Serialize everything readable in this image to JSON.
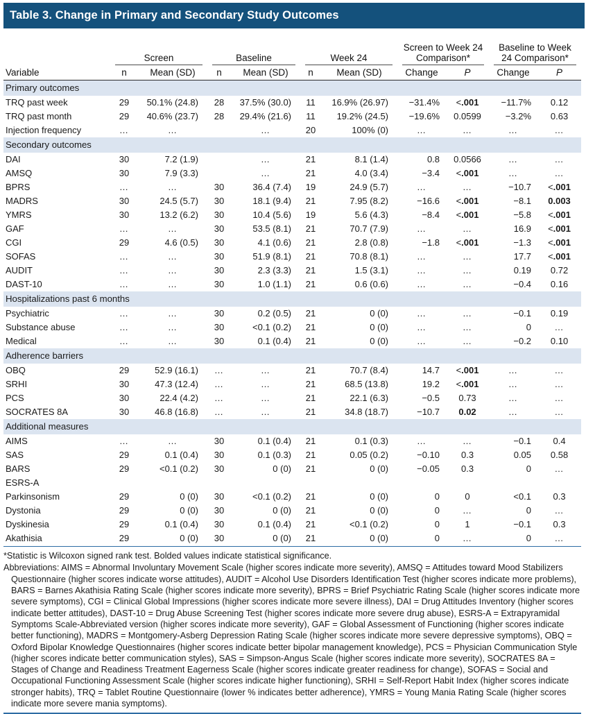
{
  "title": "Table 3. Change in Primary and Secondary Study Outcomes",
  "header": {
    "variable_label": "Variable",
    "groups": [
      {
        "label": "Screen"
      },
      {
        "label": "Baseline"
      },
      {
        "label": "Week 24"
      },
      {
        "label": "Screen to Week 24 Comparison*"
      },
      {
        "label": "Baseline to Week 24 Comparison*"
      }
    ],
    "sub": {
      "n": "n",
      "mean": "Mean (SD)",
      "change": "Change",
      "p": "P"
    }
  },
  "sections": [
    {
      "header": "Primary outcomes",
      "rows": [
        {
          "label": "TRQ past week",
          "cells": [
            "29",
            "50.1% (24.8)",
            "28",
            "37.5% (30.0)",
            "11",
            "16.9% (26.97)",
            "−31.4%",
            "<.001",
            "−11.7%",
            "0.12"
          ],
          "bold": [
            7
          ]
        },
        {
          "label": "TRQ past month",
          "cells": [
            "29",
            "40.6% (23.7)",
            "28",
            "29.4% (21.6)",
            "11",
            "19.2% (24.5)",
            "−19.6%",
            "0.0599",
            "−3.2%",
            "0.63"
          ],
          "bold": []
        },
        {
          "label": "Injection frequency",
          "cells": [
            "…",
            "…",
            "",
            "…",
            "20",
            "100% (0)",
            "…",
            "…",
            "…",
            "…"
          ],
          "bold": []
        }
      ]
    },
    {
      "header": "Secondary outcomes",
      "rows": [
        {
          "label": "DAI",
          "cells": [
            "30",
            "7.2 (1.9)",
            "",
            "…",
            "21",
            "8.1 (1.4)",
            "0.8",
            "0.0566",
            "…",
            "…"
          ],
          "bold": []
        },
        {
          "label": "AMSQ",
          "cells": [
            "30",
            "7.9 (3.3)",
            "",
            "…",
            "21",
            "4.0 (3.4)",
            "−3.4",
            "<.001",
            "…",
            "…"
          ],
          "bold": [
            7
          ]
        },
        {
          "label": "BPRS",
          "cells": [
            "…",
            "…",
            "30",
            "36.4 (7.4)",
            "19",
            "24.9 (5.7)",
            "…",
            "…",
            "−10.7",
            "<.001"
          ],
          "bold": [
            9
          ]
        },
        {
          "label": "MADRS",
          "cells": [
            "30",
            "24.5 (5.7)",
            "30",
            "18.1 (9.4)",
            "21",
            "7.95 (8.2)",
            "−16.6",
            "<.001",
            "−8.1",
            "0.003"
          ],
          "bold": [
            7,
            9
          ]
        },
        {
          "label": "YMRS",
          "cells": [
            "30",
            "13.2 (6.2)",
            "30",
            "10.4 (5.6)",
            "19",
            "5.6 (4.3)",
            "−8.4",
            "<.001",
            "−5.8",
            "<.001"
          ],
          "bold": [
            7,
            9
          ]
        },
        {
          "label": "GAF",
          "cells": [
            "…",
            "…",
            "30",
            "53.5 (8.1)",
            "21",
            "70.7 (7.9)",
            "…",
            "…",
            "16.9",
            "<.001"
          ],
          "bold": [
            9
          ]
        },
        {
          "label": "CGI",
          "cells": [
            "29",
            "4.6 (0.5)",
            "30",
            "4.1 (0.6)",
            "21",
            "2.8 (0.8)",
            "−1.8",
            "<.001",
            "−1.3",
            "<.001"
          ],
          "bold": [
            7,
            9
          ]
        },
        {
          "label": "SOFAS",
          "cells": [
            "…",
            "…",
            "30",
            "51.9 (8.1)",
            "21",
            "70.8 (8.1)",
            "…",
            "…",
            "17.7",
            "<.001"
          ],
          "bold": [
            9
          ]
        },
        {
          "label": "AUDIT",
          "cells": [
            "…",
            "…",
            "30",
            "2.3 (3.3)",
            "21",
            "1.5 (3.1)",
            "…",
            "…",
            "0.19",
            "0.72"
          ],
          "bold": []
        },
        {
          "label": "DAST-10",
          "cells": [
            "…",
            "…",
            "30",
            "1.0 (1.1)",
            "21",
            "0.6 (0.6)",
            "…",
            "…",
            "−0.4",
            "0.16"
          ],
          "bold": []
        }
      ]
    },
    {
      "header": "Hospitalizations past 6 months",
      "rows": [
        {
          "label": "Psychiatric",
          "cells": [
            "…",
            "…",
            "30",
            "0.2 (0.5)",
            "21",
            "0 (0)",
            "…",
            "…",
            "−0.1",
            "0.19"
          ],
          "bold": []
        },
        {
          "label": "Substance abuse",
          "cells": [
            "…",
            "…",
            "30",
            "<0.1 (0.2)",
            "21",
            "0 (0)",
            "…",
            "…",
            "0",
            "…"
          ],
          "bold": []
        },
        {
          "label": "Medical",
          "cells": [
            "…",
            "…",
            "30",
            "0.1 (0.4)",
            "21",
            "0 (0)",
            "…",
            "…",
            "−0.2",
            "0.10"
          ],
          "bold": []
        }
      ]
    },
    {
      "header": "Adherence barriers",
      "rows": [
        {
          "label": "OBQ",
          "cells": [
            "29",
            "52.9 (16.1)",
            "…",
            "…",
            "21",
            "70.7 (8.4)",
            "14.7",
            "<.001",
            "…",
            "…"
          ],
          "bold": [
            7
          ]
        },
        {
          "label": "SRHI",
          "cells": [
            "30",
            "47.3 (12.4)",
            "…",
            "…",
            "21",
            "68.5 (13.8)",
            "19.2",
            "<.001",
            "…",
            "…"
          ],
          "bold": [
            7
          ]
        },
        {
          "label": "PCS",
          "cells": [
            "30",
            "22.4 (4.2)",
            "…",
            "…",
            "21",
            "22.1 (6.3)",
            "−0.5",
            "0.73",
            "…",
            "…"
          ],
          "bold": []
        },
        {
          "label": "SOCRATES 8A",
          "cells": [
            "30",
            "46.8 (16.8)",
            "…",
            "…",
            "21",
            "34.8 (18.7)",
            "−10.7",
            "0.02",
            "…",
            "…"
          ],
          "bold": [
            7
          ]
        }
      ]
    },
    {
      "header": "Additional measures",
      "rows": [
        {
          "label": "AIMS",
          "cells": [
            "…",
            "…",
            "30",
            "0.1 (0.4)",
            "21",
            "0.1 (0.3)",
            "…",
            "…",
            "−0.1",
            "0.4"
          ],
          "bold": []
        },
        {
          "label": "SAS",
          "cells": [
            "29",
            "0.1 (0.4)",
            "30",
            "0.1 (0.3)",
            "21",
            "0.05 (0.2)",
            "−0.10",
            "0.3",
            "0.05",
            "0.58"
          ],
          "bold": []
        },
        {
          "label": "BARS",
          "cells": [
            "29",
            "<0.1 (0.2)",
            "30",
            "0 (0)",
            "21",
            "0 (0)",
            "−0.05",
            "0.3",
            "0",
            "…"
          ],
          "bold": []
        },
        {
          "label": "ESRS-A",
          "cells": [
            "",
            "",
            "",
            "",
            "",
            "",
            "",
            "",
            "",
            ""
          ],
          "bold": []
        },
        {
          "label": "Parkinsonism",
          "cells": [
            "29",
            "0 (0)",
            "30",
            "<0.1 (0.2)",
            "21",
            "0 (0)",
            "0",
            "0",
            "<0.1",
            "0.3"
          ],
          "bold": []
        },
        {
          "label": "Dystonia",
          "cells": [
            "29",
            "0 (0)",
            "30",
            "0 (0)",
            "21",
            "0 (0)",
            "0",
            "…",
            "0",
            "…"
          ],
          "bold": []
        },
        {
          "label": "Dyskinesia",
          "cells": [
            "29",
            "0.1 (0.4)",
            "30",
            "0.1 (0.4)",
            "21",
            "<0.1 (0.2)",
            "0",
            "1",
            "−0.1",
            "0.3"
          ],
          "bold": []
        },
        {
          "label": "Akathisia",
          "cells": [
            "29",
            "0 (0)",
            "30",
            "0 (0)",
            "21",
            "0 (0)",
            "0",
            "…",
            "0",
            "…"
          ],
          "bold": []
        }
      ]
    }
  ],
  "footnotes": {
    "statistic": "*Statistic is Wilcoxon signed rank test. Bolded values indicate statistical significance.",
    "abbreviations": "Abbreviations: AIMS = Abnormal Involuntary Movement Scale (higher scores indicate more severity), AMSQ = Attitudes toward Mood Stabilizers Questionnaire (higher scores indicate worse attitudes), AUDIT = Alcohol Use Disorders Identification Test (higher scores indicate more problems), BARS = Barnes Akathisia Rating Scale (higher scores indicate more severity), BPRS = Brief Psychiatric Rating Scale (higher scores indicate more severe symptoms), CGI = Clinical Global Impressions (higher scores indicate more severe illness), DAI = Drug Attitudes Inventory (higher scores indicate better attitudes), DAST-10 = Drug Abuse Screening Test (higher scores indicate more severe drug abuse), ESRS-A = Extrapyramidal Symptoms Scale-Abbreviated version (higher scores indicate more severity), GAF = Global Assessment of Functioning (higher scores indicate better functioning), MADRS = Montgomery-Asberg Depression Rating Scale (higher scores indicate more severe depressive symptoms), OBQ = Oxford Bipolar Knowledge Questionnaires (higher scores indicate better bipolar management knowledge), PCS = Physician Communication Style (higher scores indicate better communication styles), SAS = Simpson-Angus Scale (higher scores indicate more severity), SOCRATES 8A = Stages of Change and Readiness Treatment Eagerness Scale (higher scores indicate greater readiness for change), SOFAS = Social and Occupational Functioning Assessment Scale (higher scores indicate higher functioning), SRHI = Self-Report Habit Index (higher scores indicate stronger habits), TRQ = Tablet Routine Questionnaire (lower % indicates better adherence), YMRS = Young Mania Rating Scale (higher scores indicate more severe mania symptoms)."
  },
  "colors": {
    "title_bar": "#14517c",
    "section_band": "#dbe4f0",
    "rule_blue": "#2e6da4"
  }
}
